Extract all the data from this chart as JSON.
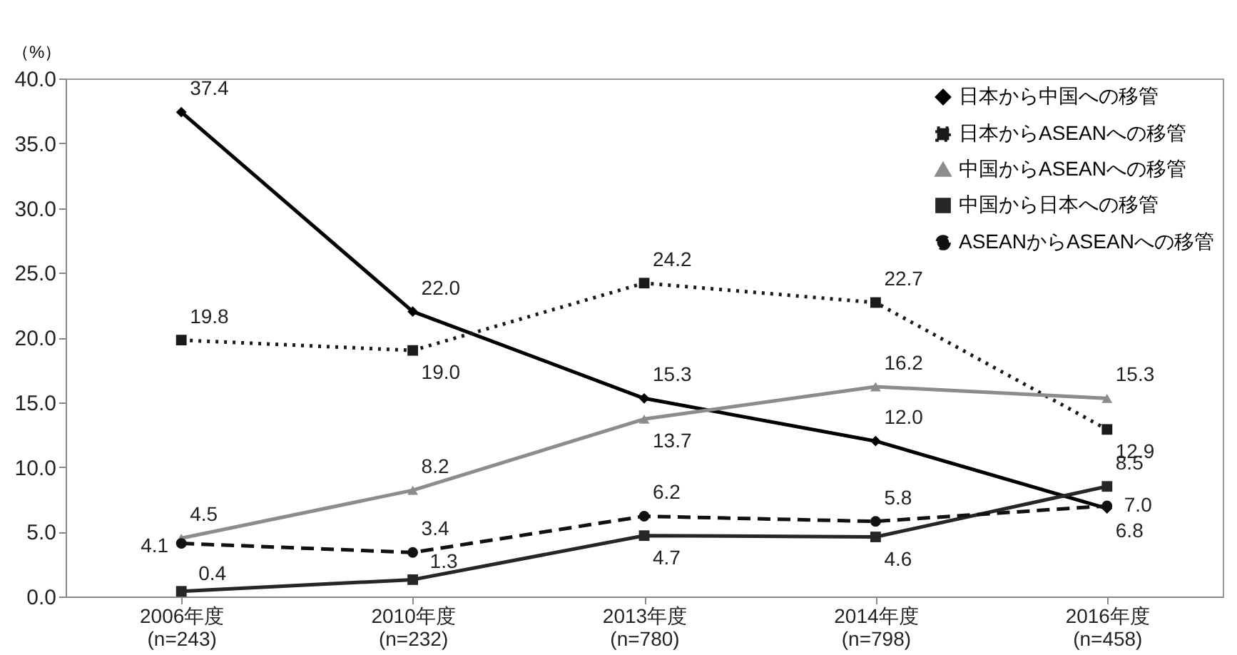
{
  "chart_data": {
    "type": "line",
    "ylabel": "（%）",
    "categories": [
      "2006年度\n(n=243)",
      "2010年度\n(n=232)",
      "2013年度\n(n=780)",
      "2014年度\n(n=798)",
      "2016年度\n(n=458)"
    ],
    "series": [
      {
        "name": "日本から中国への移管",
        "color": "#000000",
        "marker": "diamond",
        "line_style": "solid",
        "values": [
          37.4,
          22.0,
          15.3,
          12.0,
          6.8
        ],
        "value_labels": [
          "37.4",
          "22.0",
          "15.3",
          "12.0",
          "6.8"
        ]
      },
      {
        "name": "日本からASEANへの移管",
        "color": "#1a1a1a",
        "marker": "square",
        "line_style": "dotted",
        "values": [
          19.8,
          19.0,
          24.2,
          22.7,
          12.9
        ],
        "value_labels": [
          "19.8",
          "19.0",
          "24.2",
          "22.7",
          "12.9"
        ]
      },
      {
        "name": "中国からASEANへの移管",
        "color": "#8c8c8c",
        "marker": "triangle",
        "line_style": "solid",
        "values": [
          4.5,
          8.2,
          13.7,
          16.2,
          15.3
        ],
        "value_labels": [
          "4.5",
          "8.2",
          "13.7",
          "16.2",
          "15.3"
        ]
      },
      {
        "name": "中国から日本への移管",
        "color": "#262626",
        "marker": "square",
        "line_style": "solid",
        "values": [
          0.4,
          1.3,
          4.7,
          4.6,
          8.5
        ],
        "value_labels": [
          "0.4",
          "1.3",
          "4.7",
          "4.6",
          "8.5"
        ]
      },
      {
        "name": "ASEANからASEANへの移管",
        "color": "#111111",
        "marker": "circle",
        "line_style": "dashed",
        "values": [
          4.1,
          3.4,
          6.2,
          5.8,
          7.0
        ],
        "value_labels": [
          "4.1",
          "3.4",
          "6.2",
          "5.8",
          "7.0"
        ]
      }
    ],
    "ylim": [
      0,
      40
    ],
    "yticks": [
      {
        "value": 0,
        "label": "0.0"
      },
      {
        "value": 5,
        "label": "5.0"
      },
      {
        "value": 10,
        "label": "10.0"
      },
      {
        "value": 15,
        "label": "15.0"
      },
      {
        "value": 20,
        "label": "20.0"
      },
      {
        "value": 25,
        "label": "25.0"
      },
      {
        "value": 30,
        "label": "30.0"
      },
      {
        "value": 35,
        "label": "35.0"
      },
      {
        "value": 40,
        "label": "40.0"
      }
    ],
    "legend": "top right",
    "grid": false
  }
}
